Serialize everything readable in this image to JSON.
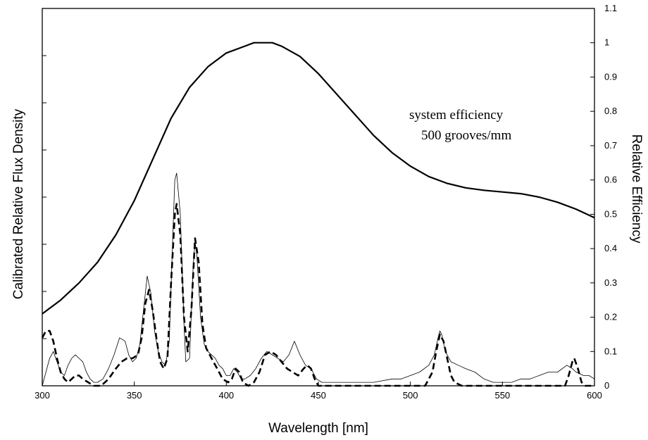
{
  "chart_data": {
    "type": "line",
    "xlabel": "Wavelength [nm]",
    "ylabel_left": "Calibrated Relative Flux Density",
    "ylabel_right": "Relative Efficiency",
    "xlim": [
      300,
      600
    ],
    "ylim_right": [
      0,
      1.1
    ],
    "x_ticks": [
      300,
      350,
      400,
      450,
      500,
      550,
      600
    ],
    "x_tick_labels": [
      "300",
      "350",
      "400",
      "450",
      "500",
      "550",
      "600"
    ],
    "y_right_ticks": [
      0,
      0.1,
      0.2,
      0.3,
      0.4,
      0.5,
      0.6,
      0.7,
      0.8,
      0.9,
      1,
      1.1
    ],
    "y_right_tick_labels": [
      "0",
      "0.1",
      "0.2",
      "0.3",
      "0.4",
      "0.5",
      "0.6",
      "0.7",
      "0.8",
      "0.9",
      "1",
      "1.1"
    ],
    "left_axis_tick_count": 8,
    "grid": false,
    "annotations": [
      "system efficiency",
      "500 grooves/mm"
    ],
    "series": [
      {
        "style": "solid-thick",
        "axis": "right",
        "points": [
          [
            300,
            0.21
          ],
          [
            310,
            0.25
          ],
          [
            320,
            0.3
          ],
          [
            330,
            0.36
          ],
          [
            340,
            0.44
          ],
          [
            350,
            0.54
          ],
          [
            360,
            0.66
          ],
          [
            370,
            0.78
          ],
          [
            380,
            0.87
          ],
          [
            390,
            0.93
          ],
          [
            400,
            0.97
          ],
          [
            410,
            0.99
          ],
          [
            415,
            1.0
          ],
          [
            425,
            1.0
          ],
          [
            430,
            0.99
          ],
          [
            440,
            0.96
          ],
          [
            450,
            0.91
          ],
          [
            460,
            0.85
          ],
          [
            470,
            0.79
          ],
          [
            480,
            0.73
          ],
          [
            490,
            0.68
          ],
          [
            500,
            0.64
          ],
          [
            510,
            0.61
          ],
          [
            520,
            0.59
          ],
          [
            530,
            0.577
          ],
          [
            540,
            0.57
          ],
          [
            550,
            0.565
          ],
          [
            560,
            0.56
          ],
          [
            570,
            0.55
          ],
          [
            580,
            0.535
          ],
          [
            590,
            0.515
          ],
          [
            600,
            0.49
          ]
        ]
      },
      {
        "style": "thin",
        "axis": "right",
        "points": [
          [
            300,
            0.0
          ],
          [
            302,
            0.04
          ],
          [
            304,
            0.08
          ],
          [
            306,
            0.1
          ],
          [
            308,
            0.07
          ],
          [
            310,
            0.04
          ],
          [
            312,
            0.03
          ],
          [
            314,
            0.06
          ],
          [
            316,
            0.08
          ],
          [
            318,
            0.09
          ],
          [
            320,
            0.08
          ],
          [
            322,
            0.07
          ],
          [
            324,
            0.04
          ],
          [
            326,
            0.02
          ],
          [
            328,
            0.01
          ],
          [
            330,
            0.01
          ],
          [
            333,
            0.02
          ],
          [
            336,
            0.05
          ],
          [
            339,
            0.09
          ],
          [
            342,
            0.14
          ],
          [
            345,
            0.13
          ],
          [
            347,
            0.09
          ],
          [
            349,
            0.07
          ],
          [
            351,
            0.08
          ],
          [
            353,
            0.12
          ],
          [
            355,
            0.22
          ],
          [
            357,
            0.32
          ],
          [
            359,
            0.27
          ],
          [
            361,
            0.16
          ],
          [
            363,
            0.1
          ],
          [
            365,
            0.07
          ],
          [
            367,
            0.06
          ],
          [
            369,
            0.13
          ],
          [
            371,
            0.45
          ],
          [
            372,
            0.6
          ],
          [
            373,
            0.62
          ],
          [
            375,
            0.5
          ],
          [
            377,
            0.18
          ],
          [
            378,
            0.07
          ],
          [
            380,
            0.08
          ],
          [
            382,
            0.35
          ],
          [
            383,
            0.42
          ],
          [
            384,
            0.38
          ],
          [
            386,
            0.2
          ],
          [
            388,
            0.12
          ],
          [
            390,
            0.1
          ],
          [
            392,
            0.09
          ],
          [
            394,
            0.08
          ],
          [
            396,
            0.06
          ],
          [
            398,
            0.05
          ],
          [
            400,
            0.03
          ],
          [
            402,
            0.03
          ],
          [
            404,
            0.05
          ],
          [
            406,
            0.04
          ],
          [
            408,
            0.02
          ],
          [
            410,
            0.02
          ],
          [
            413,
            0.03
          ],
          [
            416,
            0.05
          ],
          [
            419,
            0.08
          ],
          [
            422,
            0.1
          ],
          [
            425,
            0.09
          ],
          [
            428,
            0.08
          ],
          [
            431,
            0.07
          ],
          [
            434,
            0.09
          ],
          [
            437,
            0.13
          ],
          [
            440,
            0.09
          ],
          [
            443,
            0.06
          ],
          [
            446,
            0.05
          ],
          [
            449,
            0.02
          ],
          [
            452,
            0.01
          ],
          [
            460,
            0.01
          ],
          [
            470,
            0.01
          ],
          [
            480,
            0.01
          ],
          [
            490,
            0.02
          ],
          [
            495,
            0.02
          ],
          [
            500,
            0.03
          ],
          [
            505,
            0.04
          ],
          [
            510,
            0.06
          ],
          [
            513,
            0.09
          ],
          [
            515,
            0.14
          ],
          [
            516,
            0.16
          ],
          [
            517,
            0.15
          ],
          [
            519,
            0.1
          ],
          [
            522,
            0.07
          ],
          [
            526,
            0.06
          ],
          [
            530,
            0.05
          ],
          [
            535,
            0.04
          ],
          [
            540,
            0.02
          ],
          [
            545,
            0.01
          ],
          [
            550,
            0.01
          ],
          [
            555,
            0.01
          ],
          [
            560,
            0.02
          ],
          [
            565,
            0.02
          ],
          [
            570,
            0.03
          ],
          [
            575,
            0.04
          ],
          [
            580,
            0.04
          ],
          [
            585,
            0.06
          ],
          [
            588,
            0.05
          ],
          [
            590,
            0.04
          ],
          [
            594,
            0.03
          ],
          [
            597,
            0.03
          ],
          [
            600,
            0.02
          ]
        ]
      },
      {
        "style": "dashed",
        "axis": "right",
        "points": [
          [
            300,
            0.14
          ],
          [
            302,
            0.16
          ],
          [
            304,
            0.16
          ],
          [
            306,
            0.13
          ],
          [
            308,
            0.08
          ],
          [
            310,
            0.04
          ],
          [
            312,
            0.02
          ],
          [
            314,
            0.01
          ],
          [
            316,
            0.02
          ],
          [
            318,
            0.03
          ],
          [
            320,
            0.03
          ],
          [
            322,
            0.02
          ],
          [
            325,
            0.01
          ],
          [
            328,
            0.0
          ],
          [
            332,
            0.0
          ],
          [
            336,
            0.02
          ],
          [
            340,
            0.05
          ],
          [
            343,
            0.07
          ],
          [
            346,
            0.08
          ],
          [
            349,
            0.08
          ],
          [
            352,
            0.09
          ],
          [
            354,
            0.14
          ],
          [
            356,
            0.24
          ],
          [
            358,
            0.28
          ],
          [
            360,
            0.22
          ],
          [
            362,
            0.14
          ],
          [
            364,
            0.07
          ],
          [
            366,
            0.05
          ],
          [
            368,
            0.08
          ],
          [
            370,
            0.3
          ],
          [
            372,
            0.5
          ],
          [
            373,
            0.53
          ],
          [
            375,
            0.44
          ],
          [
            377,
            0.2
          ],
          [
            379,
            0.1
          ],
          [
            381,
            0.22
          ],
          [
            383,
            0.43
          ],
          [
            385,
            0.36
          ],
          [
            387,
            0.18
          ],
          [
            389,
            0.11
          ],
          [
            392,
            0.08
          ],
          [
            395,
            0.05
          ],
          [
            398,
            0.02
          ],
          [
            401,
            0.01
          ],
          [
            403,
            0.02
          ],
          [
            405,
            0.05
          ],
          [
            407,
            0.04
          ],
          [
            409,
            0.01
          ],
          [
            412,
            0.0
          ],
          [
            415,
            0.01
          ],
          [
            418,
            0.04
          ],
          [
            421,
            0.09
          ],
          [
            424,
            0.1
          ],
          [
            427,
            0.09
          ],
          [
            430,
            0.07
          ],
          [
            433,
            0.05
          ],
          [
            436,
            0.04
          ],
          [
            439,
            0.03
          ],
          [
            442,
            0.05
          ],
          [
            444,
            0.06
          ],
          [
            446,
            0.05
          ],
          [
            448,
            0.02
          ],
          [
            450,
            0.0
          ],
          [
            460,
            0.0
          ],
          [
            480,
            0.0
          ],
          [
            500,
            0.0
          ],
          [
            508,
            0.0
          ],
          [
            512,
            0.04
          ],
          [
            514,
            0.1
          ],
          [
            516,
            0.15
          ],
          [
            518,
            0.13
          ],
          [
            520,
            0.08
          ],
          [
            522,
            0.03
          ],
          [
            524,
            0.01
          ],
          [
            528,
            0.0
          ],
          [
            540,
            0.0
          ],
          [
            560,
            0.0
          ],
          [
            580,
            0.0
          ],
          [
            584,
            0.0
          ],
          [
            586,
            0.03
          ],
          [
            588,
            0.07
          ],
          [
            589,
            0.08
          ],
          [
            591,
            0.05
          ],
          [
            593,
            0.01
          ],
          [
            595,
            0.0
          ],
          [
            600,
            0.0
          ]
        ]
      }
    ]
  }
}
